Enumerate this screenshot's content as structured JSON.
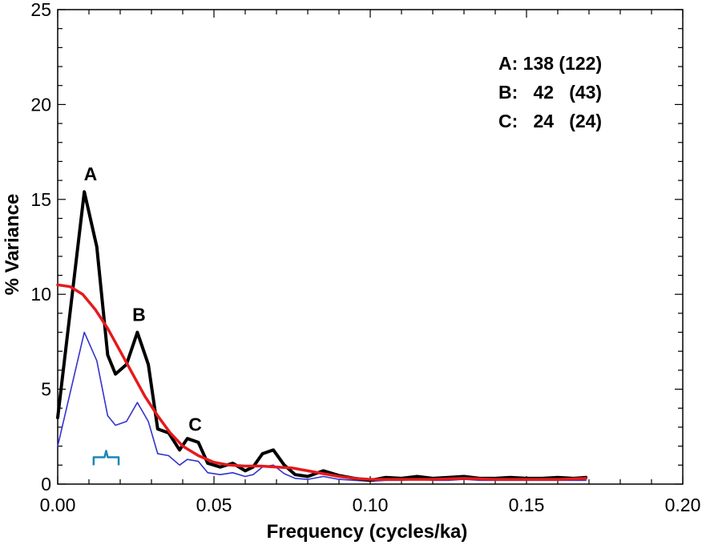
{
  "chart_data": {
    "type": "line",
    "title": "",
    "xlabel": "Frequency (cycles/ka)",
    "ylabel": "% Variance",
    "xlim": [
      0,
      0.2
    ],
    "ylim": [
      0,
      25
    ],
    "x_ticks": [
      "0.00",
      "0.05",
      "0.10",
      "0.15",
      "0.20"
    ],
    "y_ticks": [
      "0",
      "5",
      "10",
      "15",
      "20",
      "25"
    ],
    "grid": false,
    "colors": {
      "spectrum": "#000000",
      "confidence": "#3333cc",
      "fit": "#e41a1c",
      "bandwidth": "#1b87b8"
    },
    "series": [
      {
        "points": [
          [
            0.0,
            3.5
          ],
          [
            0.0085,
            15.4
          ],
          [
            0.0125,
            12.5
          ],
          [
            0.016,
            6.8
          ],
          [
            0.0185,
            5.8
          ],
          [
            0.022,
            6.3
          ],
          [
            0.0255,
            8.0
          ],
          [
            0.029,
            6.3
          ],
          [
            0.032,
            2.9
          ],
          [
            0.0355,
            2.7
          ],
          [
            0.039,
            1.8
          ],
          [
            0.0415,
            2.4
          ],
          [
            0.045,
            2.2
          ],
          [
            0.048,
            1.1
          ],
          [
            0.052,
            0.9
          ],
          [
            0.056,
            1.1
          ],
          [
            0.06,
            0.7
          ],
          [
            0.0625,
            0.9
          ],
          [
            0.0655,
            1.6
          ],
          [
            0.069,
            1.8
          ],
          [
            0.0725,
            1.0
          ],
          [
            0.076,
            0.5
          ],
          [
            0.08,
            0.4
          ],
          [
            0.085,
            0.7
          ],
          [
            0.09,
            0.45
          ],
          [
            0.095,
            0.3
          ],
          [
            0.1,
            0.2
          ],
          [
            0.105,
            0.35
          ],
          [
            0.11,
            0.3
          ],
          [
            0.115,
            0.4
          ],
          [
            0.12,
            0.3
          ],
          [
            0.125,
            0.35
          ],
          [
            0.13,
            0.4
          ],
          [
            0.135,
            0.3
          ],
          [
            0.14,
            0.3
          ],
          [
            0.145,
            0.35
          ],
          [
            0.15,
            0.3
          ],
          [
            0.155,
            0.3
          ],
          [
            0.16,
            0.35
          ],
          [
            0.165,
            0.3
          ],
          [
            0.169,
            0.35
          ]
        ]
      },
      {
        "points": [
          [
            0.0,
            2.0
          ],
          [
            0.0085,
            8.0
          ],
          [
            0.0125,
            6.5
          ],
          [
            0.016,
            3.6
          ],
          [
            0.0185,
            3.1
          ],
          [
            0.022,
            3.3
          ],
          [
            0.0255,
            4.3
          ],
          [
            0.029,
            3.3
          ],
          [
            0.032,
            1.6
          ],
          [
            0.0355,
            1.5
          ],
          [
            0.039,
            1.0
          ],
          [
            0.0415,
            1.3
          ],
          [
            0.045,
            1.2
          ],
          [
            0.048,
            0.6
          ],
          [
            0.052,
            0.5
          ],
          [
            0.056,
            0.6
          ],
          [
            0.06,
            0.4
          ],
          [
            0.0625,
            0.5
          ],
          [
            0.0655,
            0.9
          ],
          [
            0.069,
            1.0
          ],
          [
            0.0725,
            0.55
          ],
          [
            0.076,
            0.3
          ],
          [
            0.08,
            0.25
          ],
          [
            0.085,
            0.4
          ],
          [
            0.09,
            0.25
          ],
          [
            0.095,
            0.2
          ],
          [
            0.1,
            0.15
          ],
          [
            0.105,
            0.2
          ],
          [
            0.11,
            0.2
          ],
          [
            0.115,
            0.25
          ],
          [
            0.12,
            0.2
          ],
          [
            0.125,
            0.2
          ],
          [
            0.13,
            0.25
          ],
          [
            0.135,
            0.2
          ],
          [
            0.14,
            0.2
          ],
          [
            0.145,
            0.2
          ],
          [
            0.15,
            0.2
          ],
          [
            0.155,
            0.2
          ],
          [
            0.16,
            0.2
          ],
          [
            0.165,
            0.2
          ],
          [
            0.169,
            0.2
          ]
        ]
      },
      {
        "points": [
          [
            0.0,
            10.5
          ],
          [
            0.004,
            10.4
          ],
          [
            0.008,
            10.0
          ],
          [
            0.012,
            9.2
          ],
          [
            0.016,
            8.2
          ],
          [
            0.02,
            7.0
          ],
          [
            0.024,
            5.8
          ],
          [
            0.028,
            4.6
          ],
          [
            0.032,
            3.6
          ],
          [
            0.036,
            2.7
          ],
          [
            0.04,
            2.0
          ],
          [
            0.045,
            1.5
          ],
          [
            0.05,
            1.15
          ],
          [
            0.055,
            1.0
          ],
          [
            0.06,
            0.95
          ],
          [
            0.065,
            0.95
          ],
          [
            0.07,
            0.9
          ],
          [
            0.075,
            0.85
          ],
          [
            0.08,
            0.7
          ],
          [
            0.085,
            0.55
          ],
          [
            0.09,
            0.4
          ],
          [
            0.095,
            0.3
          ],
          [
            0.1,
            0.25
          ],
          [
            0.11,
            0.25
          ],
          [
            0.12,
            0.25
          ],
          [
            0.13,
            0.3
          ],
          [
            0.14,
            0.25
          ],
          [
            0.15,
            0.25
          ],
          [
            0.16,
            0.25
          ],
          [
            0.169,
            0.3
          ]
        ]
      }
    ],
    "bandwidth_bar": {
      "x_start": 0.0115,
      "x_end": 0.0195,
      "y": 1.5
    },
    "annotations": [
      {
        "text": "A",
        "x": 0.0105,
        "y": 16.0
      },
      {
        "text": "B",
        "x": 0.026,
        "y": 8.6
      },
      {
        "text": "C",
        "x": 0.044,
        "y": 2.8
      }
    ],
    "legend_lines": [
      "A: 138 (122)",
      "B:   42   (43)",
      "C:   24   (24)"
    ]
  }
}
